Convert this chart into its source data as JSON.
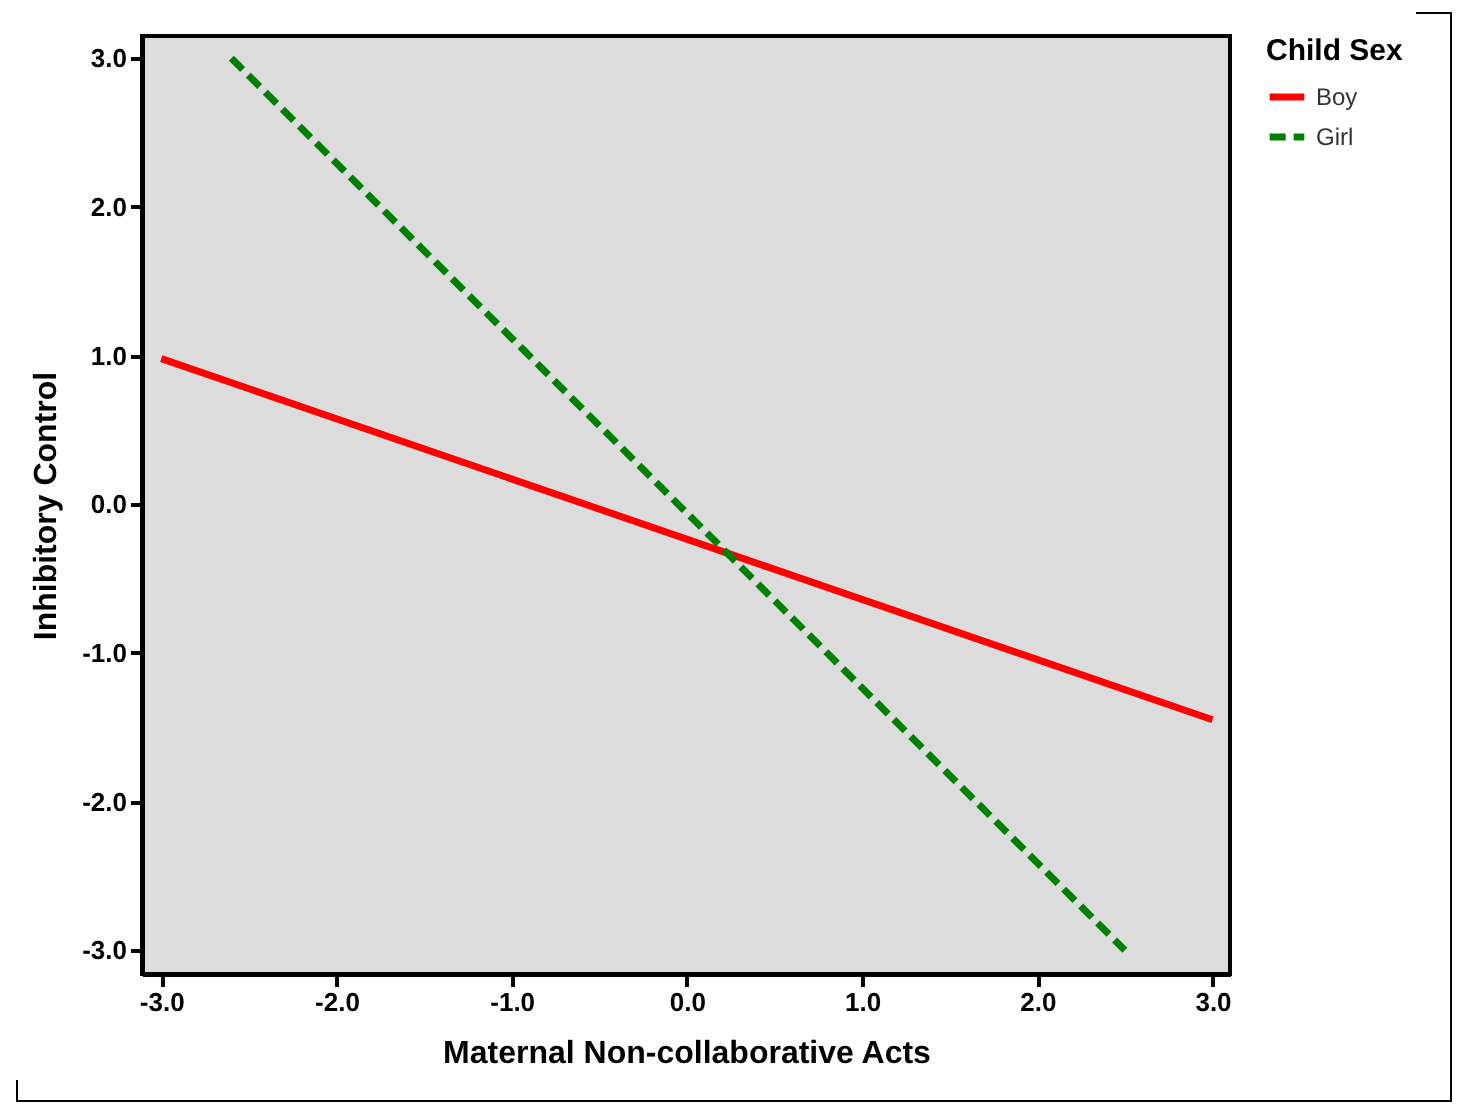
{
  "chart_data": {
    "type": "line",
    "xlabel": "Maternal Non-collaborative Acts",
    "ylabel": "Inhibitory Control",
    "legend_title": "Child Sex",
    "legend": "top right",
    "grid": false,
    "marker": "none",
    "xlim": [
      -3.11,
      3.1
    ],
    "ylim": [
      -3.16,
      3.15
    ],
    "xticks": [
      {
        "value": -3,
        "label": "-3.0"
      },
      {
        "value": -2,
        "label": "-2.0"
      },
      {
        "value": -1,
        "label": "-1.0"
      },
      {
        "value": 0,
        "label": "0.0"
      },
      {
        "value": 1,
        "label": "1.0"
      },
      {
        "value": 2,
        "label": "2.0"
      },
      {
        "value": 3,
        "label": "3.0"
      }
    ],
    "yticks": [
      {
        "value": -3,
        "label": "-3.0"
      },
      {
        "value": -2,
        "label": "-2.0"
      },
      {
        "value": -1,
        "label": "-1.0"
      },
      {
        "value": 0,
        "label": "0.0"
      },
      {
        "value": 1,
        "label": "1.0"
      },
      {
        "value": 2,
        "label": "2.0"
      },
      {
        "value": 3,
        "label": "3.0"
      }
    ],
    "series": [
      {
        "name": "Boy",
        "color": "#ff0000",
        "line_style": "solid",
        "x": [
          -3,
          3
        ],
        "values": [
          0.98,
          -1.45
        ]
      },
      {
        "name": "Girl",
        "color": "#008000",
        "line_style": "dashed",
        "x": [
          -2.6,
          2.5
        ],
        "values": [
          3.0,
          -3.0
        ]
      }
    ]
  }
}
